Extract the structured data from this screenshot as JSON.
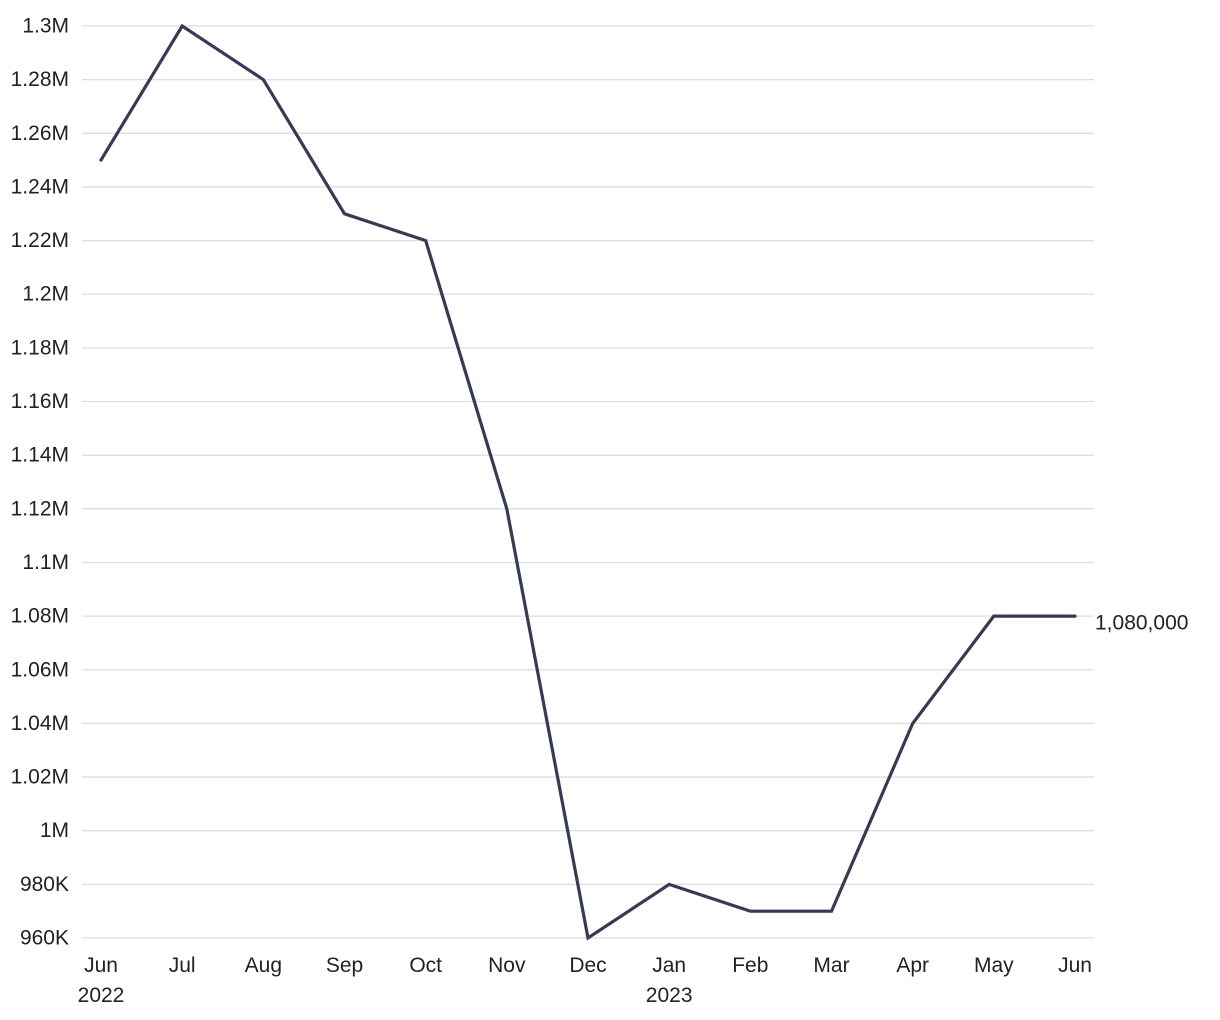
{
  "chart_data": {
    "type": "line",
    "title": "",
    "xlabel": "",
    "ylabel": "",
    "x": [
      "2022-06",
      "2022-07",
      "2022-08",
      "2022-09",
      "2022-10",
      "2022-11",
      "2022-12",
      "2023-01",
      "2023-02",
      "2023-03",
      "2023-04",
      "2023-05",
      "2023-06"
    ],
    "x_tick_labels": [
      "Jun",
      "Jul",
      "Aug",
      "Sep",
      "Oct",
      "Nov",
      "Dec",
      "Jan",
      "Feb",
      "Mar",
      "Apr",
      "May",
      "Jun"
    ],
    "x_year_labels": [
      {
        "index": 0,
        "text": "2022"
      },
      {
        "index": 7,
        "text": "2023"
      }
    ],
    "series": [
      {
        "values": [
          1250000,
          1300000,
          1280000,
          1230000,
          1220000,
          1120000,
          960000,
          980000,
          970000,
          970000,
          1040000,
          1080000,
          1080000
        ],
        "color": "#343b52"
      }
    ],
    "ylim": [
      960000,
      1300000
    ],
    "y_ticks": [
      960000,
      980000,
      1000000,
      1020000,
      1040000,
      1060000,
      1080000,
      1100000,
      1120000,
      1140000,
      1160000,
      1180000,
      1200000,
      1220000,
      1240000,
      1260000,
      1280000,
      1300000
    ],
    "y_tick_labels": [
      "960K",
      "980K",
      "1M",
      "1.02M",
      "1.04M",
      "1.06M",
      "1.08M",
      "1.1M",
      "1.12M",
      "1.14M",
      "1.16M",
      "1.18M",
      "1.2M",
      "1.22M",
      "1.24M",
      "1.26M",
      "1.28M",
      "1.3M"
    ],
    "end_label": "1,080,000",
    "grid": true,
    "legend": "none"
  }
}
